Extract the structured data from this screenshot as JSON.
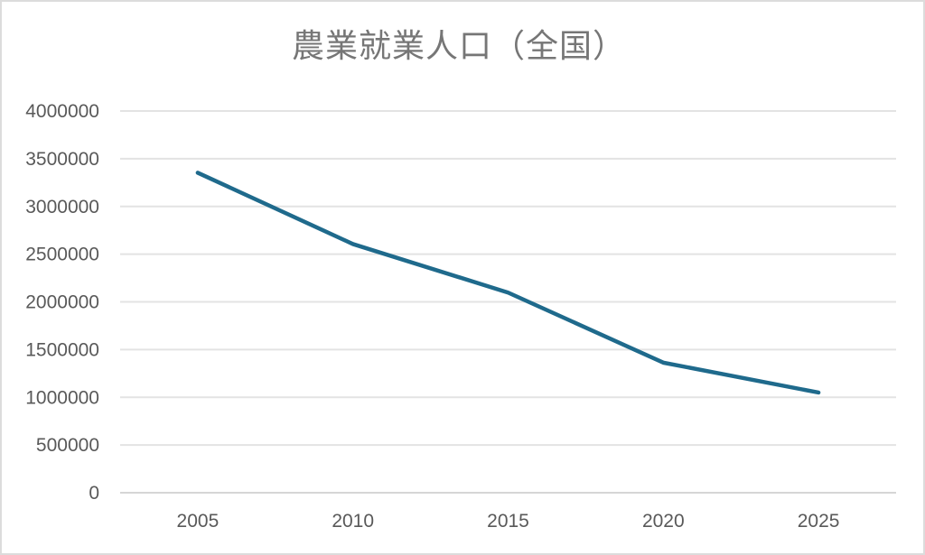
{
  "window": {
    "background_color": "#ffffff",
    "border_color": "#dcdcdc"
  },
  "chart_data": {
    "type": "line",
    "title": "農業就業人口（全国）",
    "categories": [
      "2005",
      "2010",
      "2015",
      "2020",
      "2025"
    ],
    "values": [
      3353000,
      2606000,
      2097000,
      1363000,
      1050000
    ],
    "xlabel": "",
    "ylabel": "",
    "ylim": [
      0,
      4000000
    ],
    "ytick_step": 500000,
    "ytick_labels": [
      "0",
      "500000",
      "1000000",
      "1500000",
      "2000000",
      "2500000",
      "3000000",
      "3500000",
      "4000000"
    ],
    "grid": "horizontal",
    "legend_position": "none",
    "line_color": "#1f6a8c",
    "gridline_color": "#e3e3e3",
    "axis_line_color": "#d6d6d6",
    "title_color": "#767676",
    "tick_label_color": "#595959"
  }
}
